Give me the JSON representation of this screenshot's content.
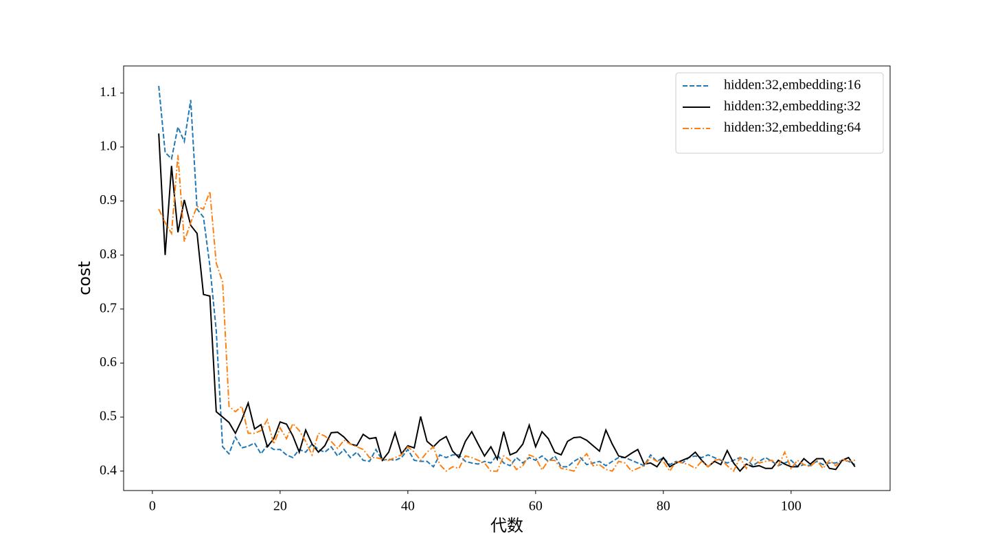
{
  "chart_data": {
    "type": "line",
    "x_label": "代数",
    "y_label": "cost",
    "x": [
      1,
      2,
      3,
      4,
      5,
      6,
      7,
      8,
      9,
      10,
      11,
      12,
      13,
      14,
      15,
      16,
      17,
      18,
      19,
      20,
      21,
      22,
      23,
      24,
      25,
      26,
      27,
      28,
      29,
      30,
      31,
      32,
      33,
      34,
      35,
      36,
      37,
      38,
      39,
      40,
      41,
      42,
      43,
      44,
      45,
      46,
      47,
      48,
      49,
      50,
      51,
      52,
      53,
      54,
      55,
      56,
      57,
      58,
      59,
      60,
      61,
      62,
      63,
      64,
      65,
      66,
      67,
      68,
      69,
      70,
      71,
      72,
      73,
      74,
      75,
      76,
      77,
      78,
      79,
      80,
      81,
      82,
      83,
      84,
      85,
      86,
      87,
      88,
      89,
      90,
      91,
      92,
      93,
      94,
      95,
      96,
      97,
      98,
      99,
      100,
      101,
      102,
      103,
      104,
      105,
      106,
      107,
      108,
      109,
      110
    ],
    "series": [
      {
        "name": "hidden:32,embedding:16",
        "color": "#1f77b4",
        "linestyle": "dashed",
        "values": [
          1.113,
          0.99,
          0.978,
          1.037,
          1.01,
          1.087,
          0.885,
          0.87,
          0.78,
          0.66,
          0.445,
          0.432,
          0.463,
          0.443,
          0.446,
          0.452,
          0.432,
          0.448,
          0.44,
          0.44,
          0.43,
          0.425,
          0.44,
          0.435,
          0.45,
          0.44,
          0.435,
          0.445,
          0.428,
          0.44,
          0.425,
          0.435,
          0.42,
          0.418,
          0.44,
          0.42,
          0.422,
          0.42,
          0.425,
          0.44,
          0.42,
          0.418,
          0.418,
          0.408,
          0.43,
          0.425,
          0.43,
          0.43,
          0.418,
          0.415,
          0.413,
          0.418,
          0.415,
          0.43,
          0.415,
          0.41,
          0.425,
          0.415,
          0.425,
          0.42,
          0.428,
          0.418,
          0.428,
          0.408,
          0.408,
          0.418,
          0.425,
          0.412,
          0.415,
          0.418,
          0.41,
          0.418,
          0.425,
          0.425,
          0.42,
          0.415,
          0.41,
          0.43,
          0.418,
          0.425,
          0.412,
          0.418,
          0.415,
          0.425,
          0.428,
          0.425,
          0.43,
          0.425,
          0.42,
          0.415,
          0.42,
          0.425,
          0.422,
          0.41,
          0.418,
          0.425,
          0.418,
          0.41,
          0.415,
          0.42,
          0.408,
          0.412,
          0.41,
          0.418,
          0.412,
          0.415,
          0.415,
          0.42,
          0.418,
          0.412
        ]
      },
      {
        "name": "hidden:32,embedding:32",
        "color": "#000000",
        "linestyle": "solid",
        "values": [
          1.025,
          0.8,
          0.965,
          0.842,
          0.902,
          0.855,
          0.84,
          0.727,
          0.724,
          0.51,
          0.5,
          0.49,
          0.47,
          0.495,
          0.526,
          0.478,
          0.486,
          0.445,
          0.46,
          0.491,
          0.487,
          0.465,
          0.435,
          0.476,
          0.45,
          0.435,
          0.447,
          0.471,
          0.472,
          0.463,
          0.45,
          0.447,
          0.468,
          0.46,
          0.462,
          0.42,
          0.435,
          0.471,
          0.432,
          0.447,
          0.443,
          0.501,
          0.455,
          0.445,
          0.457,
          0.464,
          0.437,
          0.425,
          0.455,
          0.473,
          0.45,
          0.428,
          0.445,
          0.422,
          0.473,
          0.43,
          0.435,
          0.45,
          0.485,
          0.445,
          0.473,
          0.46,
          0.435,
          0.43,
          0.455,
          0.462,
          0.463,
          0.457,
          0.447,
          0.437,
          0.476,
          0.45,
          0.428,
          0.425,
          0.433,
          0.44,
          0.413,
          0.415,
          0.408,
          0.425,
          0.408,
          0.415,
          0.42,
          0.425,
          0.435,
          0.42,
          0.408,
          0.418,
          0.412,
          0.438,
          0.415,
          0.4,
          0.413,
          0.408,
          0.41,
          0.405,
          0.405,
          0.42,
          0.413,
          0.408,
          0.408,
          0.423,
          0.413,
          0.423,
          0.423,
          0.405,
          0.403,
          0.42,
          0.425,
          0.408
        ]
      },
      {
        "name": "hidden:32,embedding:64",
        "color": "#ff7f0e",
        "linestyle": "dashdot",
        "values": [
          0.885,
          0.86,
          0.84,
          0.985,
          0.825,
          0.86,
          0.89,
          0.885,
          0.918,
          0.785,
          0.75,
          0.52,
          0.51,
          0.52,
          0.47,
          0.47,
          0.475,
          0.495,
          0.45,
          0.48,
          0.46,
          0.488,
          0.475,
          0.455,
          0.43,
          0.47,
          0.465,
          0.455,
          0.442,
          0.457,
          0.45,
          0.445,
          0.44,
          0.425,
          0.425,
          0.422,
          0.42,
          0.425,
          0.43,
          0.445,
          0.435,
          0.42,
          0.435,
          0.445,
          0.412,
          0.4,
          0.408,
          0.405,
          0.428,
          0.425,
          0.42,
          0.415,
          0.4,
          0.4,
          0.428,
          0.42,
          0.403,
          0.41,
          0.43,
          0.425,
          0.402,
          0.42,
          0.42,
          0.405,
          0.403,
          0.4,
          0.42,
          0.432,
          0.41,
          0.412,
          0.403,
          0.4,
          0.418,
          0.415,
          0.4,
          0.405,
          0.41,
          0.425,
          0.418,
          0.418,
          0.4,
          0.418,
          0.415,
          0.412,
          0.405,
          0.418,
          0.408,
          0.42,
          0.422,
          0.41,
          0.4,
          0.425,
          0.405,
          0.425,
          0.415,
          0.418,
          0.42,
          0.41,
          0.435,
          0.405,
          0.42,
          0.412,
          0.408,
          0.42,
          0.405,
          0.42,
          0.41,
          0.422,
          0.418,
          0.42
        ]
      }
    ],
    "xlim": [
      -4.5,
      115.5
    ],
    "xticks": [
      0,
      20,
      40,
      60,
      80,
      100
    ],
    "ylim": [
      0.364,
      1.15
    ],
    "yticks": [
      0.4,
      0.5,
      0.6,
      0.7,
      0.8,
      0.9,
      {
        "value": 1,
        "label": "1.0"
      },
      1.1
    ],
    "legend": "upper right"
  }
}
